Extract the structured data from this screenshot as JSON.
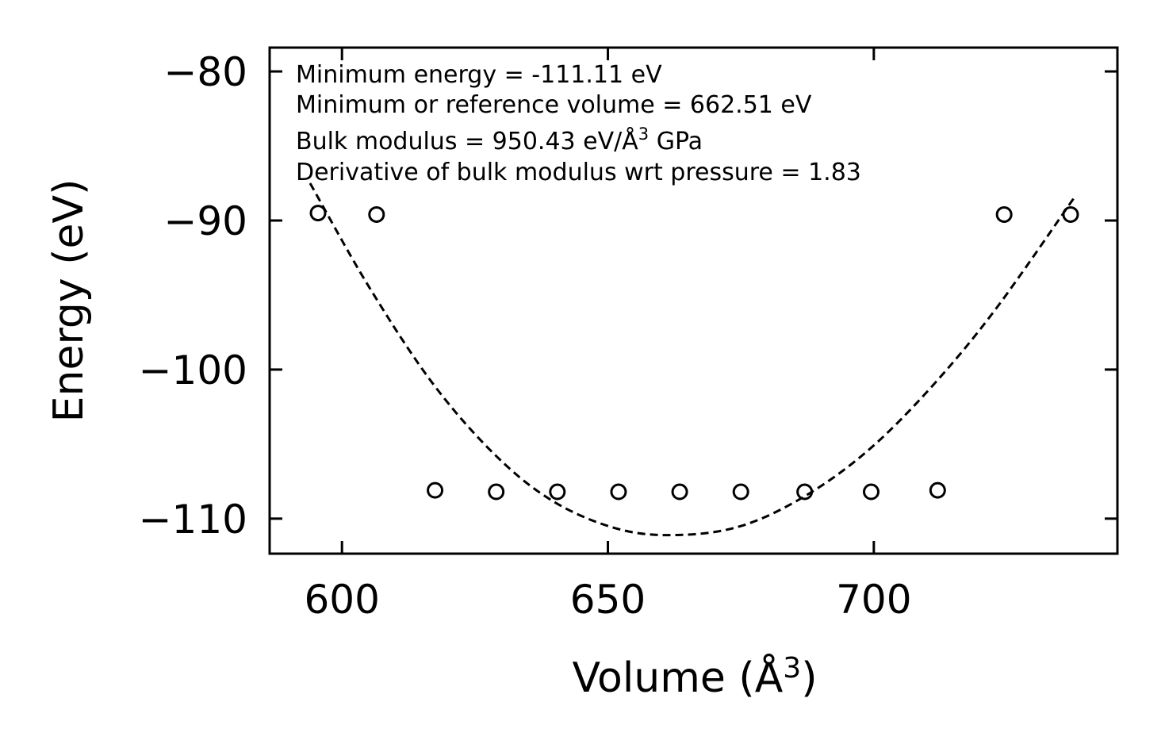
{
  "chart_data": {
    "type": "scatter",
    "title": "",
    "xlabel": "Volume (Å",
    "xlabel_sup": "3",
    "xlabel_close": ")",
    "ylabel": "Energy (eV)",
    "xlim": [
      586.4,
      745.8
    ],
    "ylim": [
      -112.35,
      -78.4
    ],
    "xticks": [
      {
        "value": 600,
        "label": "600"
      },
      {
        "value": 650,
        "label": "650"
      },
      {
        "value": 700,
        "label": "700"
      }
    ],
    "yticks": [
      {
        "value": -80,
        "label": "−80"
      },
      {
        "value": -90,
        "label": "−90"
      },
      {
        "value": -100,
        "label": "−100"
      },
      {
        "value": -110,
        "label": "−110"
      }
    ],
    "grid": false,
    "series": [
      {
        "name": "data",
        "style": "open-circle",
        "x": [
          595.5,
          606.5,
          617.5,
          629.0,
          640.5,
          652.0,
          663.5,
          675.0,
          687.0,
          699.5,
          712.0,
          724.5,
          737.0
        ],
        "y": [
          -89.5,
          -89.6,
          -108.1,
          -108.2,
          -108.2,
          -108.2,
          -108.2,
          -108.2,
          -108.2,
          -108.2,
          -108.1,
          -89.6,
          -89.6
        ]
      },
      {
        "name": "fit",
        "style": "dashed-line",
        "x": [
          594.0,
          605.0,
          617.0,
          629.0,
          640.0,
          652.0,
          663.0,
          675.0,
          687.0,
          699.0,
          711.0,
          723.0,
          738.0
        ],
        "y": [
          -87.5,
          -94.4,
          -100.9,
          -105.8,
          -108.9,
          -110.7,
          -111.1,
          -110.5,
          -108.5,
          -105.4,
          -101.1,
          -95.9,
          -88.3
        ]
      }
    ],
    "annotations": [
      {
        "text": "Minimum energy = -111.11 eV"
      },
      {
        "text": "Minimum or reference volume = 662.51 eV"
      },
      {
        "text_before": "Bulk modulus = 950.43 eV/Å",
        "sup": "3",
        "text_after": " GPa"
      },
      {
        "text": "Derivative of bulk modulus wrt pressure = 1.83"
      }
    ]
  }
}
